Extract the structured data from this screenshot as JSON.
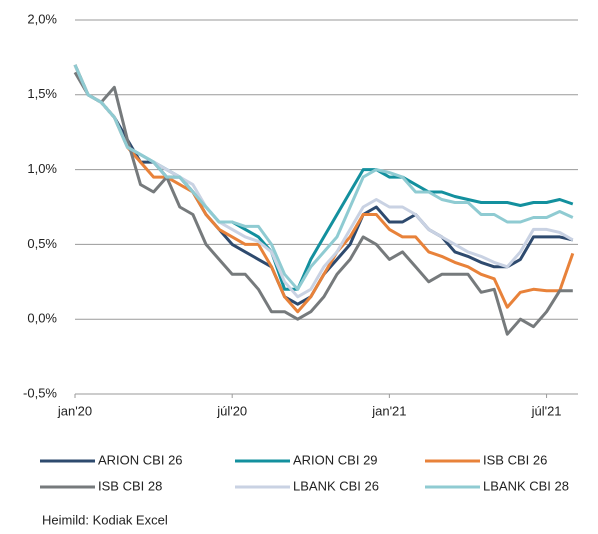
{
  "chart_data": {
    "type": "line",
    "source": "Heimild:  Kodiak Excel",
    "x": [
      0,
      0.5,
      1,
      1.5,
      2,
      2.5,
      3,
      3.5,
      4,
      4.5,
      5,
      5.5,
      6,
      6.5,
      7,
      7.5,
      8,
      8.5,
      9,
      9.5,
      10,
      10.5,
      11,
      11.5,
      12,
      12.5,
      13,
      13.5,
      14,
      14.5,
      15,
      15.5,
      16,
      16.5,
      17,
      17.5,
      18,
      18.5,
      19
    ],
    "xlim": [
      0,
      19.2
    ],
    "xticks": [
      {
        "value": 0,
        "label": "jan'20"
      },
      {
        "value": 6,
        "label": "júl'20"
      },
      {
        "value": 12,
        "label": "jan'21"
      },
      {
        "value": 18,
        "label": "júl'21"
      }
    ],
    "ylim": [
      -0.5,
      2.0
    ],
    "yticks": [
      {
        "value": -0.5,
        "label": "-0,5%"
      },
      {
        "value": 0.0,
        "label": "0,0%"
      },
      {
        "value": 0.5,
        "label": "0,5%"
      },
      {
        "value": 1.0,
        "label": "1,0%"
      },
      {
        "value": 1.5,
        "label": "1,5%"
      },
      {
        "value": 2.0,
        "label": "2,0%"
      }
    ],
    "grid": true,
    "legend": "bottom",
    "series": [
      {
        "name": "ARION CBI 26",
        "color": "#2e4a6e",
        "values": [
          1.7,
          1.5,
          1.45,
          1.35,
          1.2,
          1.05,
          1.05,
          0.95,
          0.95,
          0.85,
          0.7,
          0.6,
          0.5,
          0.45,
          0.4,
          0.35,
          0.15,
          0.1,
          0.15,
          0.3,
          0.4,
          0.5,
          0.7,
          0.75,
          0.65,
          0.65,
          0.7,
          0.6,
          0.55,
          0.45,
          0.42,
          0.38,
          0.35,
          0.35,
          0.4,
          0.55,
          0.55,
          0.55,
          0.53
        ]
      },
      {
        "name": "ARION CBI 29",
        "color": "#13909e",
        "values": [
          1.7,
          1.5,
          1.45,
          1.35,
          1.15,
          1.1,
          1.05,
          1.0,
          0.95,
          0.85,
          0.75,
          0.65,
          0.65,
          0.6,
          0.55,
          0.45,
          0.2,
          0.2,
          0.4,
          0.55,
          0.7,
          0.85,
          1.0,
          1.0,
          0.95,
          0.95,
          0.9,
          0.85,
          0.85,
          0.82,
          0.8,
          0.78,
          0.78,
          0.78,
          0.76,
          0.78,
          0.78,
          0.8,
          0.77
        ]
      },
      {
        "name": "ISB CBI 26",
        "color": "#e8823a",
        "values": [
          1.7,
          1.5,
          1.45,
          1.35,
          1.15,
          1.05,
          0.95,
          0.95,
          0.9,
          0.85,
          0.7,
          0.6,
          0.55,
          0.5,
          0.5,
          0.35,
          0.15,
          0.05,
          0.15,
          0.3,
          0.45,
          0.55,
          0.7,
          0.7,
          0.6,
          0.55,
          0.55,
          0.45,
          0.42,
          0.38,
          0.35,
          0.3,
          0.27,
          0.08,
          0.18,
          0.2,
          0.19,
          0.19,
          0.44
        ]
      },
      {
        "name": "ISB CBI 28",
        "color": "#767a7c",
        "values": [
          1.65,
          1.5,
          1.45,
          1.55,
          1.2,
          0.9,
          0.85,
          0.95,
          0.75,
          0.7,
          0.5,
          0.4,
          0.3,
          0.3,
          0.2,
          0.05,
          0.05,
          0.0,
          0.05,
          0.15,
          0.3,
          0.4,
          0.55,
          0.5,
          0.4,
          0.45,
          0.35,
          0.25,
          0.3,
          0.3,
          0.3,
          0.18,
          0.2,
          -0.1,
          0.0,
          -0.05,
          0.05,
          0.19,
          0.19
        ]
      },
      {
        "name": "LBANK CBI 26",
        "color": "#c9d2e3",
        "values": [
          1.7,
          1.5,
          1.45,
          1.35,
          1.15,
          1.1,
          1.05,
          1.0,
          0.95,
          0.9,
          0.75,
          0.65,
          0.6,
          0.55,
          0.52,
          0.45,
          0.25,
          0.15,
          0.2,
          0.35,
          0.45,
          0.6,
          0.75,
          0.8,
          0.75,
          0.75,
          0.7,
          0.6,
          0.55,
          0.5,
          0.45,
          0.42,
          0.38,
          0.35,
          0.45,
          0.6,
          0.6,
          0.58,
          0.53
        ]
      },
      {
        "name": "LBANK CBI 28",
        "color": "#8fcbd2",
        "values": [
          1.7,
          1.5,
          1.45,
          1.35,
          1.15,
          1.1,
          1.05,
          0.95,
          0.95,
          0.85,
          0.75,
          0.65,
          0.65,
          0.62,
          0.62,
          0.5,
          0.3,
          0.2,
          0.35,
          0.45,
          0.55,
          0.75,
          0.95,
          1.0,
          0.98,
          0.95,
          0.85,
          0.85,
          0.8,
          0.78,
          0.78,
          0.7,
          0.7,
          0.65,
          0.65,
          0.68,
          0.68,
          0.72,
          0.68
        ]
      }
    ]
  }
}
